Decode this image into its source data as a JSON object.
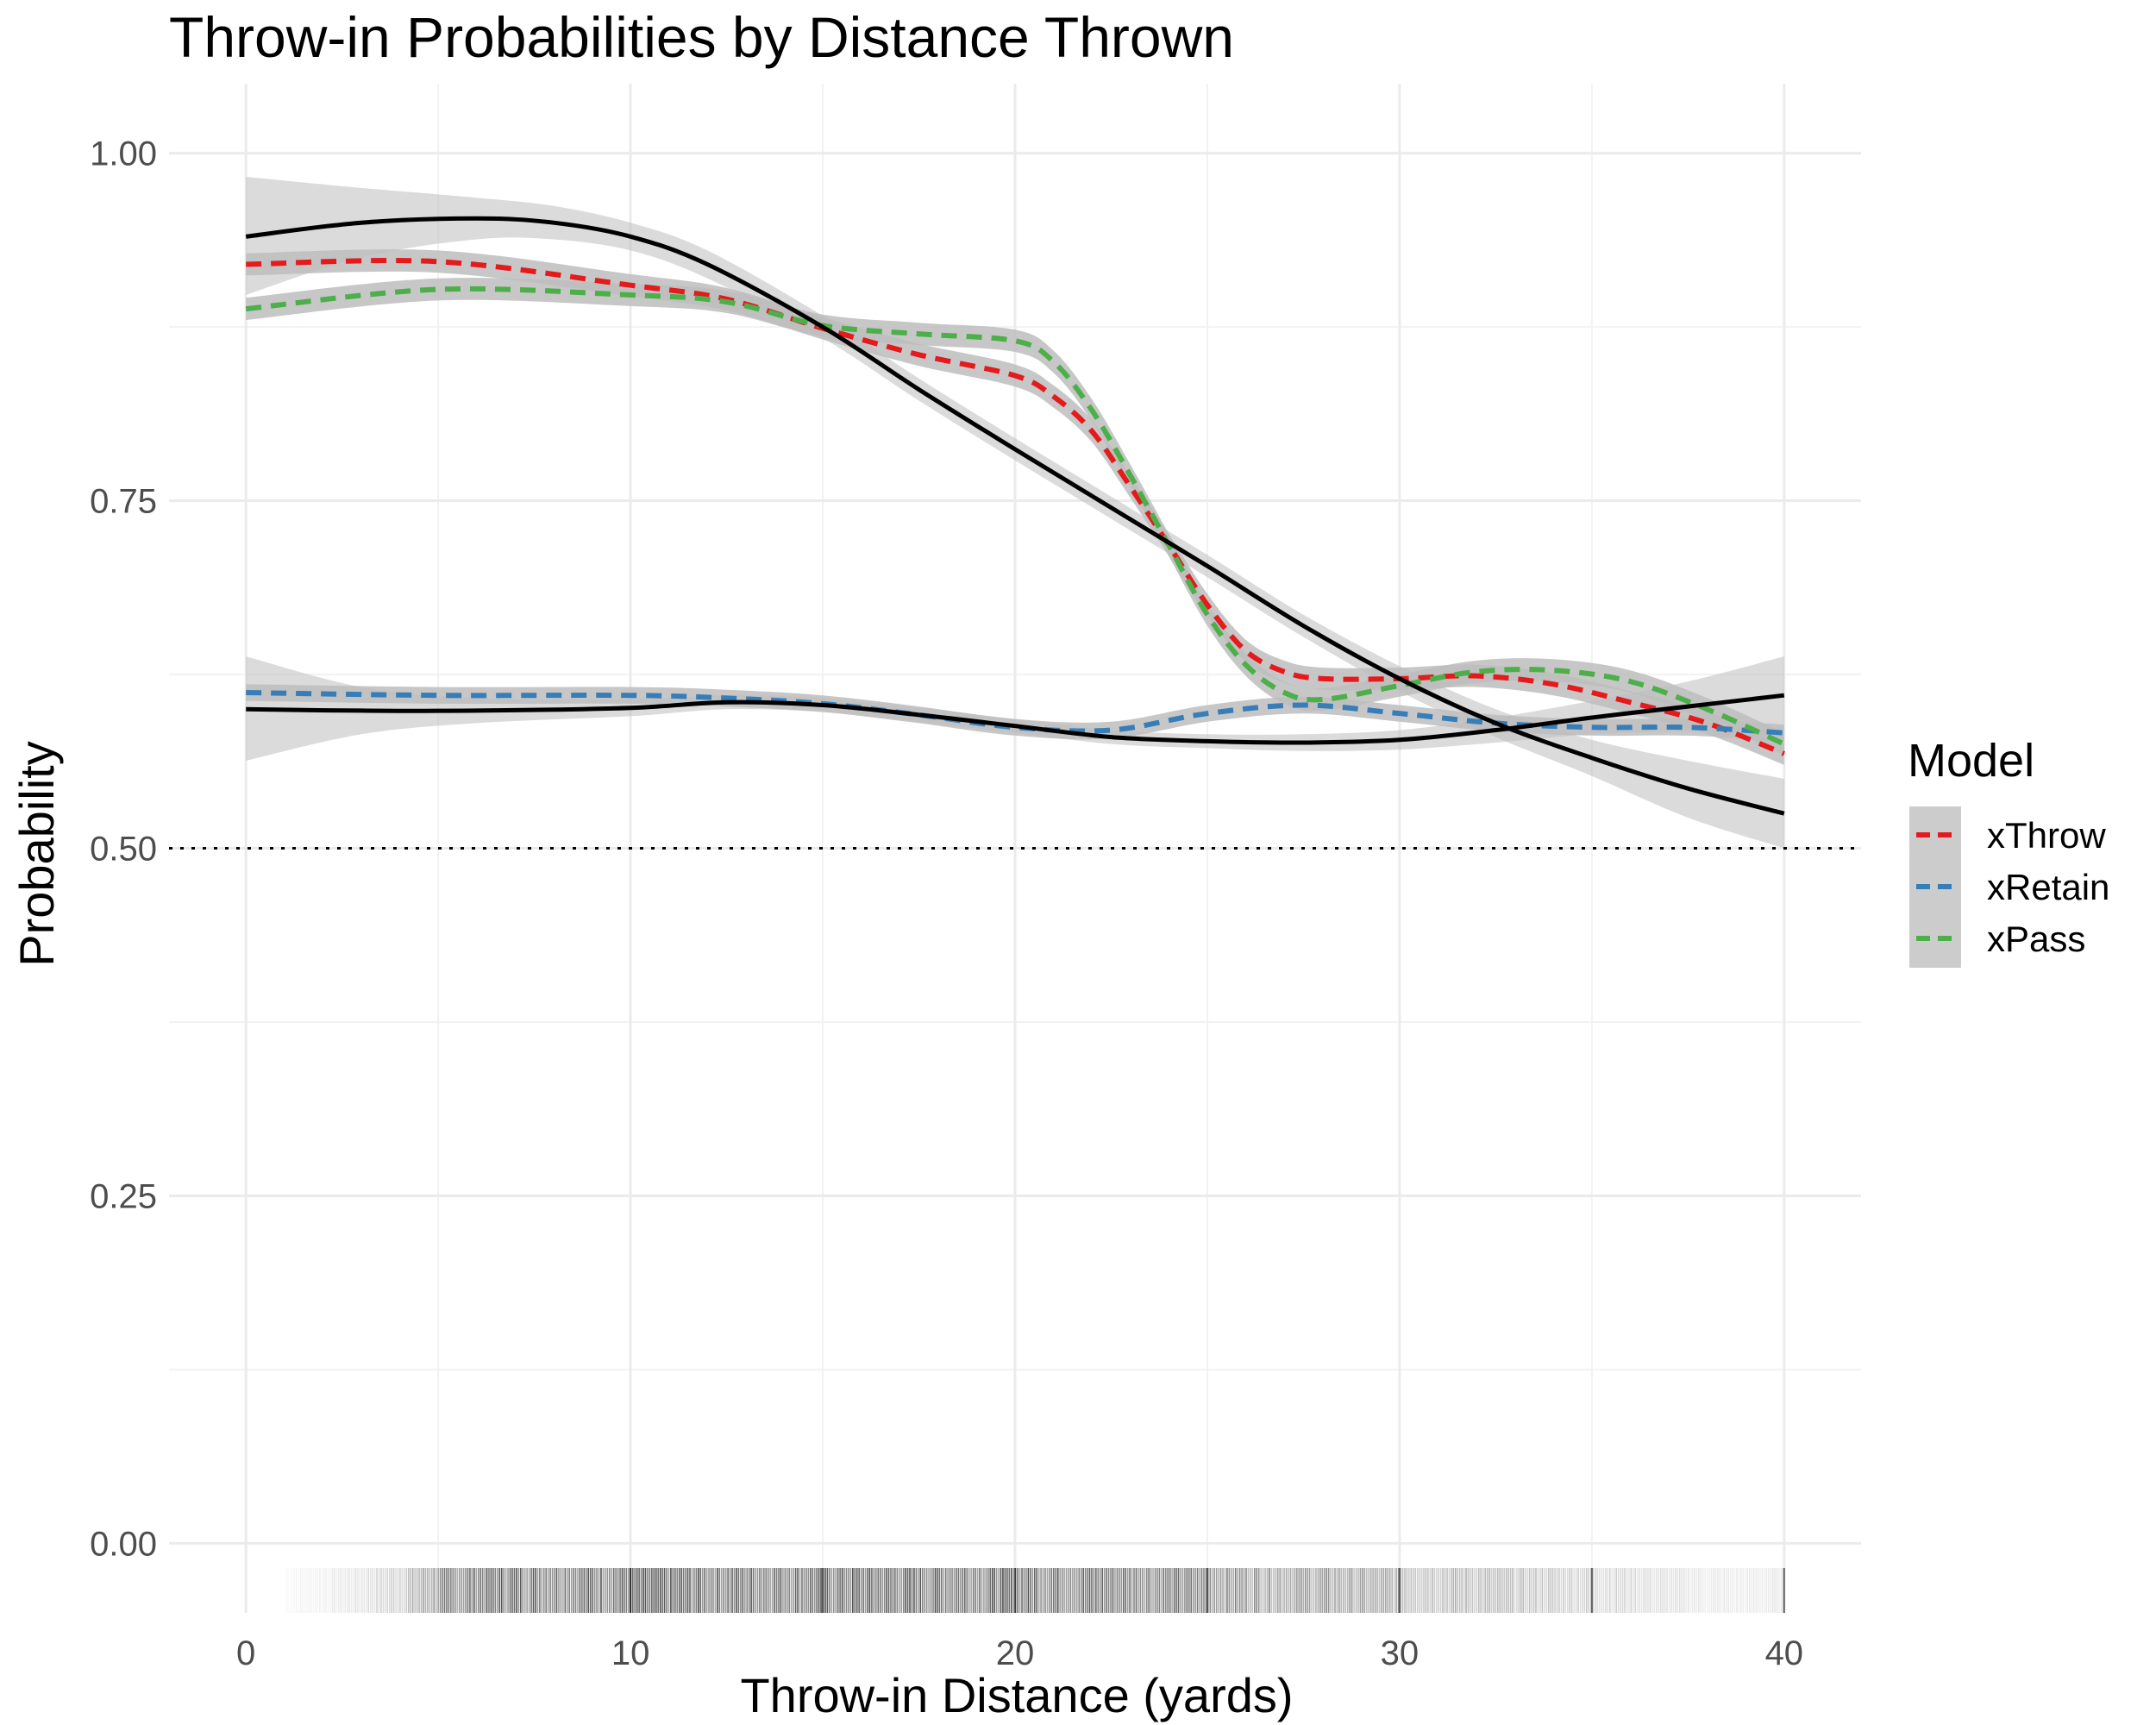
{
  "chart_data": {
    "type": "line",
    "title": "Throw-in Probabilities by Distance Thrown",
    "xlabel": "Throw-in Distance (yards)",
    "ylabel": "Probability",
    "xlim": [
      -2,
      42
    ],
    "ylim": [
      -0.05,
      1.05
    ],
    "x_ticks": [
      0,
      10,
      20,
      30,
      40
    ],
    "y_ticks": [
      0.0,
      0.25,
      0.5,
      0.75,
      1.0
    ],
    "y_tick_labels": [
      "0.00",
      "0.25",
      "0.50",
      "0.75",
      "1.00"
    ],
    "grid": true,
    "reference_line": {
      "y": 0.5,
      "style": "dotted",
      "color": "#000000"
    },
    "legend": {
      "title": "Model",
      "position": "right",
      "entries": [
        {
          "label": "xThrow",
          "color": "#e41a1c"
        },
        {
          "label": "xRetain",
          "color": "#377eb8"
        },
        {
          "label": "xPass",
          "color": "#4daf4a"
        }
      ]
    },
    "colors": {
      "xThrow": "#e41a1c",
      "xRetain": "#377eb8",
      "xPass": "#4daf4a",
      "observed": "#000000",
      "ribbon": "#bdbdbd"
    },
    "series": [
      {
        "name": "xThrow",
        "style": "dashed",
        "color": "#e41a1c",
        "x": [
          0,
          5,
          10,
          12.5,
          15,
          17.5,
          20,
          21,
          22,
          23,
          24,
          25,
          26,
          27,
          28,
          30,
          32,
          34,
          36,
          38,
          40
        ],
        "y": [
          0.92,
          0.922,
          0.905,
          0.895,
          0.874,
          0.855,
          0.84,
          0.825,
          0.8,
          0.76,
          0.718,
          0.675,
          0.642,
          0.627,
          0.622,
          0.622,
          0.624,
          0.618,
          0.605,
          0.59,
          0.568
        ],
        "band_halfwidth": 0.008
      },
      {
        "name": "xRetain",
        "style": "dashed",
        "color": "#377eb8",
        "x": [
          0,
          5,
          10,
          12.5,
          15,
          17.5,
          20,
          22.5,
          25,
          27.5,
          30,
          32.5,
          35,
          37.5,
          40
        ],
        "y": [
          0.612,
          0.61,
          0.61,
          0.608,
          0.604,
          0.596,
          0.587,
          0.585,
          0.597,
          0.603,
          0.597,
          0.59,
          0.587,
          0.587,
          0.583
        ],
        "band_halfwidth": 0.006
      },
      {
        "name": "xPass",
        "style": "dashed",
        "color": "#4daf4a",
        "x": [
          0,
          5,
          10,
          12.5,
          15,
          17.5,
          20,
          21,
          22,
          23,
          24,
          25,
          26,
          27,
          28,
          30,
          32,
          34,
          36,
          38,
          40
        ],
        "y": [
          0.888,
          0.902,
          0.898,
          0.893,
          0.876,
          0.87,
          0.865,
          0.85,
          0.815,
          0.768,
          0.718,
          0.668,
          0.632,
          0.612,
          0.607,
          0.617,
          0.627,
          0.628,
          0.62,
          0.6,
          0.575
        ],
        "band_halfwidth": 0.008
      },
      {
        "style": "solid",
        "color": "#000000",
        "x": [
          0,
          3,
          6,
          8,
          10,
          12,
          15,
          17.5,
          20,
          22.5,
          25,
          27.5,
          30,
          32.5,
          35,
          37.5,
          40
        ],
        "y": [
          0.94,
          0.95,
          0.953,
          0.95,
          0.94,
          0.92,
          0.875,
          0.83,
          0.787,
          0.745,
          0.703,
          0.66,
          0.622,
          0.59,
          0.565,
          0.543,
          0.525
        ],
        "band_lower": [
          0.898,
          0.925,
          0.938,
          0.938,
          0.93,
          0.91,
          0.867,
          0.822,
          0.779,
          0.737,
          0.695,
          0.652,
          0.613,
          0.58,
          0.552,
          0.522,
          0.5
        ],
        "band_upper": [
          0.983,
          0.975,
          0.968,
          0.962,
          0.95,
          0.93,
          0.883,
          0.838,
          0.795,
          0.753,
          0.711,
          0.668,
          0.631,
          0.6,
          0.578,
          0.563,
          0.55
        ]
      },
      {
        "style": "solid",
        "color": "#000000",
        "x": [
          0,
          3,
          6,
          10,
          12.5,
          15,
          17.5,
          20,
          22.5,
          25,
          27.5,
          30,
          32.5,
          35,
          37.5,
          40
        ],
        "y": [
          0.6,
          0.599,
          0.599,
          0.601,
          0.605,
          0.603,
          0.596,
          0.588,
          0.58,
          0.577,
          0.576,
          0.578,
          0.585,
          0.594,
          0.602,
          0.61
        ],
        "band_lower": [
          0.563,
          0.582,
          0.59,
          0.595,
          0.6,
          0.598,
          0.591,
          0.583,
          0.575,
          0.572,
          0.57,
          0.571,
          0.576,
          0.582,
          0.584,
          0.583
        ],
        "band_upper": [
          0.638,
          0.616,
          0.608,
          0.607,
          0.61,
          0.608,
          0.601,
          0.593,
          0.585,
          0.582,
          0.582,
          0.585,
          0.594,
          0.606,
          0.62,
          0.638
        ]
      }
    ],
    "rug": {
      "description": "dense rug marks of observed throw-in distances along the bottom",
      "density": [
        [
          1,
          0.03
        ],
        [
          2,
          0.06
        ],
        [
          3,
          0.12
        ],
        [
          4,
          0.22
        ],
        [
          5,
          0.45
        ],
        [
          6,
          0.6
        ],
        [
          7,
          0.62
        ],
        [
          8,
          0.62
        ],
        [
          9,
          0.62
        ],
        [
          10,
          0.62
        ],
        [
          11,
          0.62
        ],
        [
          12,
          0.62
        ],
        [
          13,
          0.62
        ],
        [
          14,
          0.62
        ],
        [
          15,
          0.62
        ],
        [
          16,
          0.62
        ],
        [
          17,
          0.62
        ],
        [
          18,
          0.62
        ],
        [
          19,
          0.62
        ],
        [
          20,
          0.62
        ],
        [
          21,
          0.62
        ],
        [
          22,
          0.6
        ],
        [
          23,
          0.58
        ],
        [
          24,
          0.55
        ],
        [
          25,
          0.5
        ],
        [
          26,
          0.45
        ],
        [
          27,
          0.42
        ],
        [
          28,
          0.4
        ],
        [
          29,
          0.37
        ],
        [
          30,
          0.33
        ],
        [
          31,
          0.3
        ],
        [
          32,
          0.28
        ],
        [
          33,
          0.25
        ],
        [
          34,
          0.22
        ],
        [
          35,
          0.2
        ],
        [
          36,
          0.16
        ],
        [
          37,
          0.12
        ],
        [
          38,
          0.09
        ],
        [
          39,
          0.08
        ],
        [
          40,
          0.1
        ]
      ]
    }
  }
}
